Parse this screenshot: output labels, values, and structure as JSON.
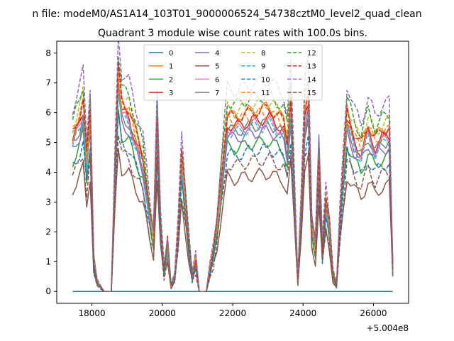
{
  "figure_title": "n file: modeM0/AS1A14_103T01_9000006524_54738cztM0_level2_quad_clean",
  "chart_data": {
    "type": "line",
    "title": "Quadrant 3 module wise count rates with 100.0s bins.",
    "xlabel": "",
    "ylabel": "",
    "offset_label": "+5.004e8",
    "xlim": [
      17000,
      27000
    ],
    "ylim": [
      -0.4,
      8.4
    ],
    "xticks": [
      18000,
      20000,
      22000,
      24000,
      26000
    ],
    "xtick_labels": [
      "18000",
      "20000",
      "22000",
      "24000",
      "26000"
    ],
    "yticks": [
      0,
      1,
      2,
      3,
      4,
      5,
      6,
      7,
      8
    ],
    "ytick_labels": [
      "0",
      "1",
      "2",
      "3",
      "4",
      "5",
      "6",
      "7",
      "8"
    ],
    "legend_location": "upper center",
    "legend_columns": 4,
    "x_start": 17450,
    "x_step": 100,
    "anchor_x": [
      17450,
      17650,
      17750,
      17850,
      17950,
      18050,
      18150,
      18350,
      18550,
      18650,
      18750,
      18850,
      19050,
      19250,
      19450,
      19650,
      19750,
      19850,
      19950,
      20050,
      20150,
      20250,
      20350,
      20450,
      20550,
      20650,
      20750,
      20850,
      20950,
      21050,
      21250,
      21350,
      21450,
      21550,
      21650,
      21750,
      21850,
      22050,
      22550,
      23050,
      23450,
      23550,
      23650,
      23750,
      23850,
      23950,
      24050,
      24150,
      24250,
      24350,
      24450,
      24550,
      24650,
      24750,
      24850,
      24950,
      25050,
      25250,
      25450,
      25650,
      25850,
      26050,
      26250,
      26450,
      26550
    ],
    "anchor_profile": [
      5.2,
      5.8,
      6.3,
      4.4,
      5.9,
      1.0,
      0.3,
      0.0,
      0.0,
      3.8,
      7.3,
      6.2,
      6.0,
      5.2,
      4.5,
      2.5,
      1.9,
      5.8,
      2.2,
      0.7,
      1.6,
      0.2,
      0.5,
      2.0,
      4.5,
      3.2,
      1.7,
      0.5,
      1.0,
      0.0,
      0.0,
      0.7,
      1.3,
      2.2,
      3.5,
      4.7,
      5.8,
      5.7,
      5.9,
      6.0,
      5.6,
      5.0,
      6.4,
      3.5,
      0.4,
      3.0,
      6.0,
      6.6,
      2.2,
      1.6,
      4.5,
      1.4,
      3.0,
      2.2,
      0.6,
      0.2,
      2.4,
      5.9,
      5.2,
      4.8,
      5.5,
      5.0,
      5.3,
      5.4,
      0.8
    ],
    "series": [
      {
        "name": "0",
        "color": "#1f77b4",
        "dash": false,
        "scale": 0.0
      },
      {
        "name": "1",
        "color": "#ff7f0e",
        "dash": false,
        "scale": 1.03
      },
      {
        "name": "2",
        "color": "#2ca02c",
        "dash": false,
        "scale": 0.84
      },
      {
        "name": "3",
        "color": "#d62728",
        "dash": false,
        "scale": 0.97
      },
      {
        "name": "4",
        "color": "#9467bd",
        "dash": false,
        "scale": 0.9
      },
      {
        "name": "5",
        "color": "#8c564b",
        "dash": false,
        "scale": 0.66
      },
      {
        "name": "6",
        "color": "#e377c2",
        "dash": false,
        "scale": 0.95
      },
      {
        "name": "7",
        "color": "#7f7f7f",
        "dash": false,
        "scale": 0.94
      },
      {
        "name": "8",
        "color": "#bcbd22",
        "dash": true,
        "scale": 1.06
      },
      {
        "name": "9",
        "color": "#17becf",
        "dash": true,
        "scale": 0.93
      },
      {
        "name": "10",
        "color": "#1f77b4",
        "dash": true,
        "scale": 0.8
      },
      {
        "name": "11",
        "color": "#ff7f0e",
        "dash": true,
        "scale": 1.0
      },
      {
        "name": "12",
        "color": "#2ca02c",
        "dash": true,
        "scale": 1.1
      },
      {
        "name": "13",
        "color": "#d62728",
        "dash": true,
        "scale": 1.02
      },
      {
        "name": "14",
        "color": "#9467bd",
        "dash": true,
        "scale": 1.18
      },
      {
        "name": "15",
        "color": "#8c564b",
        "dash": true,
        "scale": 0.74
      }
    ]
  }
}
